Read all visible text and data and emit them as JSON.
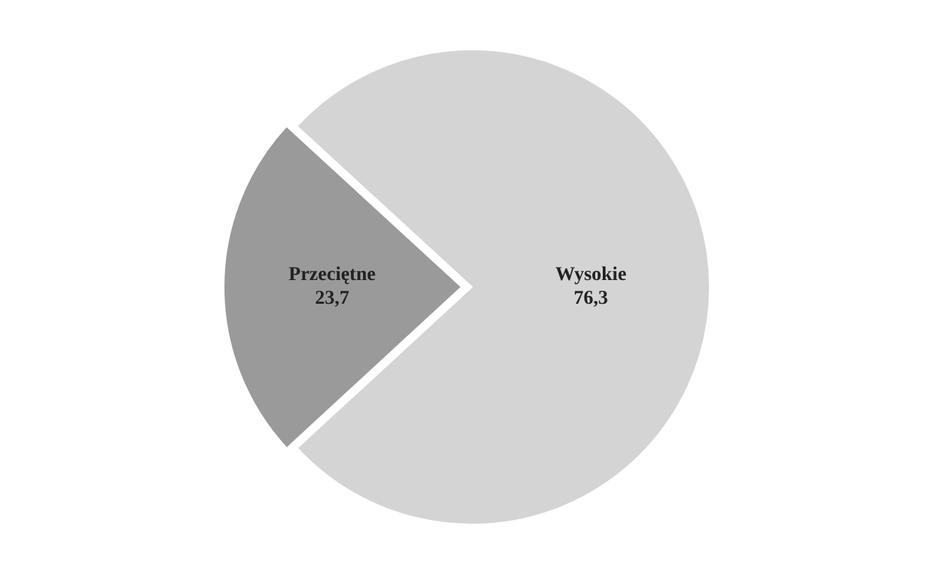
{
  "chart_data": {
    "type": "pie",
    "categories": [
      "Przeciętne",
      "Wysokie"
    ],
    "values": [
      23.7,
      76.3
    ],
    "colors": [
      "#9a9a9a",
      "#d4d4d4"
    ],
    "value_labels": [
      "23,7",
      "76,3"
    ],
    "legend": false
  }
}
